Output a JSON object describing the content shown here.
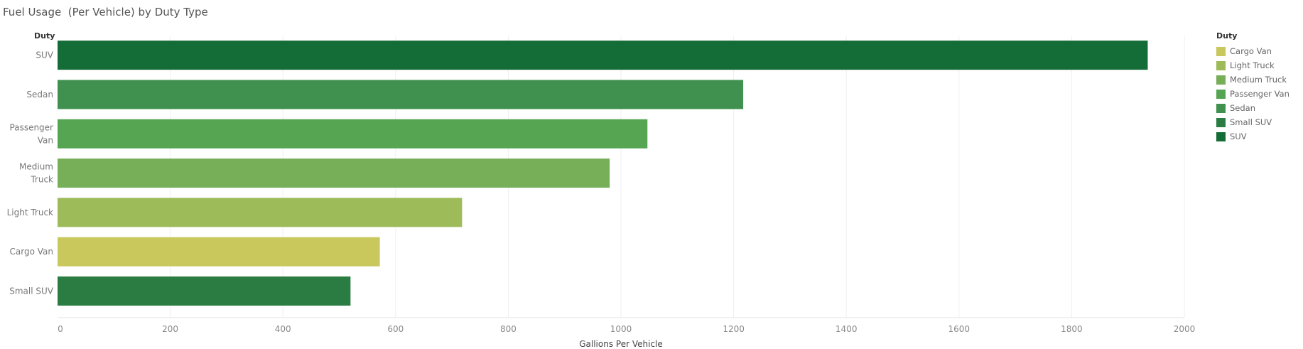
{
  "title": "Fuel Usage  (Per Vehicle) by Duty Type",
  "chart_data": {
    "type": "bar",
    "orientation": "horizontal",
    "title": "Fuel Usage  (Per Vehicle) by Duty Type",
    "row_header": "Duty",
    "xlabel": "Gallions Per Vehicle",
    "ylabel": "",
    "categories": [
      "SUV",
      "Sedan",
      "Passenger Van",
      "Medium Truck",
      "Light Truck",
      "Cargo Van",
      "Small SUV"
    ],
    "category_labels": [
      [
        "SUV"
      ],
      [
        "Sedan"
      ],
      [
        "Passenger",
        "Van"
      ],
      [
        "Medium",
        "Truck"
      ],
      [
        "Light Truck"
      ],
      [
        "Cargo Van"
      ],
      [
        "Small SUV"
      ]
    ],
    "values": [
      1935,
      1217,
      1047,
      980,
      718,
      572,
      520
    ],
    "colors": [
      "#146c36",
      "#40914f",
      "#55a553",
      "#77ae58",
      "#9dbb59",
      "#c9c85d",
      "#2a7c43"
    ],
    "xlim": [
      0,
      2000
    ],
    "xticks": [
      0,
      200,
      400,
      600,
      800,
      1000,
      1200,
      1400,
      1600,
      1800,
      2000
    ],
    "grid": true,
    "legend_position": "right",
    "legend": {
      "title": "Duty",
      "items": [
        {
          "label": "Cargo Van",
          "color": "#c9c85d"
        },
        {
          "label": "Light Truck",
          "color": "#9dbb59"
        },
        {
          "label": "Medium Truck",
          "color": "#77ae58"
        },
        {
          "label": "Passenger Van",
          "color": "#55a553"
        },
        {
          "label": "Sedan",
          "color": "#40914f"
        },
        {
          "label": "Small SUV",
          "color": "#2a7c43"
        },
        {
          "label": "SUV",
          "color": "#146c36"
        }
      ]
    }
  }
}
